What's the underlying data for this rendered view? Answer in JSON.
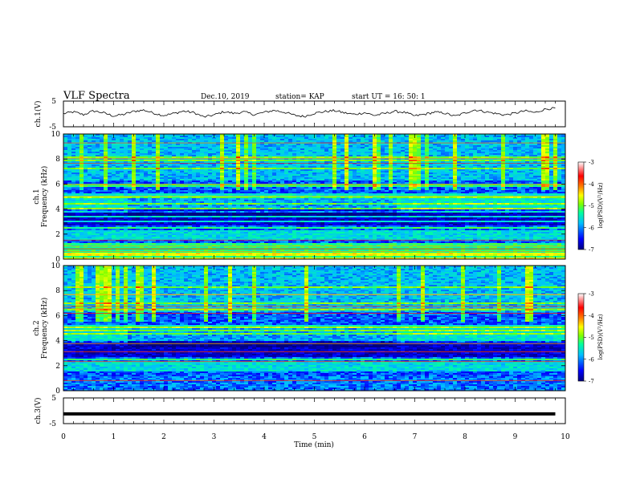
{
  "header": {
    "title": "VLF Spectra",
    "date": "Dec.10, 2019",
    "station": "station= KAP",
    "start_time": "start  UT =   16: 50: 1"
  },
  "chart_data": [
    {
      "type": "line",
      "panel": "ch1-waveform",
      "ylabel": "ch.1(V)",
      "ylim": [
        -5,
        5
      ],
      "yticks": [
        "5",
        "-5"
      ],
      "xlim": [
        0,
        10
      ],
      "x_data_end": 9.8,
      "values_description_free": true,
      "series": [
        {
          "values": [
            0.1,
            0.8,
            -0.3,
            1.2,
            0.4,
            -0.8,
            -0.2,
            1.0,
            1.5,
            0.3,
            -0.6,
            0.2,
            1.1,
            0.5,
            -1.2,
            -0.4,
            0.9,
            0.2,
            0.8,
            -0.3,
            0.6,
            1.4,
            0.7,
            -0.5,
            -1.0,
            0.3,
            0.9,
            1.3,
            0.4,
            -0.2,
            0.5,
            -0.6,
            0.2,
            1.0,
            0.6,
            -0.8,
            -0.1,
            0.7,
            0.3,
            -0.9,
            0.4,
            1.6,
            0.9,
            0.2,
            -0.4,
            0.3,
            1.2,
            0.5,
            1.9,
            2.2
          ]
        }
      ]
    },
    {
      "type": "heatmap",
      "panel": "ch1-spectrogram",
      "ylabel_top": "ch.1",
      "ylabel": "Frequency (kHz)",
      "ylim": [
        0,
        10
      ],
      "yticks": [
        "0",
        "2",
        "4",
        "6",
        "8",
        "10"
      ],
      "xlim": [
        0,
        10
      ],
      "colorbar": {
        "label": "log(PSD)(V²/Hz)",
        "range": [
          -7,
          -3
        ],
        "ticks": [
          "-3",
          "-4",
          "-5",
          "-6",
          "-7"
        ]
      }
    },
    {
      "type": "heatmap",
      "panel": "ch2-spectrogram",
      "ylabel_top": "ch.2",
      "ylabel": "Frequency (kHz)",
      "ylim": [
        0,
        10
      ],
      "yticks": [
        "0",
        "2",
        "4",
        "6",
        "8",
        "10"
      ],
      "xlim": [
        0,
        10
      ],
      "colorbar": {
        "label": "log(PSD)(V²/Hz)",
        "range": [
          -7,
          -3
        ],
        "ticks": [
          "-3",
          "-4",
          "-5",
          "-6",
          "-7"
        ]
      }
    },
    {
      "type": "line",
      "panel": "ch3-waveform",
      "ylabel": "ch.3(V)",
      "ylim": [
        -5,
        5
      ],
      "yticks": [
        "5",
        "-5"
      ],
      "xlim": [
        0,
        10
      ],
      "series": [
        {
          "values": [
            -1.2,
            -1.2
          ]
        }
      ]
    }
  ],
  "xaxis": {
    "label": "Time (min)",
    "ticks": [
      "0",
      "1",
      "2",
      "3",
      "4",
      "5",
      "6",
      "7",
      "8",
      "9",
      "10"
    ],
    "range": [
      0,
      10
    ]
  },
  "colors": {
    "axis": "#000000",
    "colormap": [
      "#00007f",
      "#0000ff",
      "#00bfff",
      "#00ff9f",
      "#7fff00",
      "#ffff00",
      "#ff7f00",
      "#ff0000",
      "#ffffff"
    ]
  }
}
